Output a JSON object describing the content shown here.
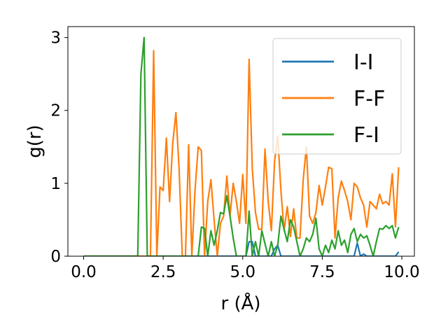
{
  "chart_data": {
    "type": "line",
    "xlabel": "r (Å)",
    "ylabel": "g(r)",
    "x": [
      0,
      0.1,
      0.2,
      0.3,
      0.4,
      0.5,
      0.6,
      0.7,
      0.8,
      0.9,
      1.0,
      1.1,
      1.2,
      1.3,
      1.4,
      1.5,
      1.6,
      1.7,
      1.8,
      1.9,
      2.0,
      2.1,
      2.2,
      2.3,
      2.4,
      2.5,
      2.6,
      2.7,
      2.8,
      2.9,
      3.0,
      3.1,
      3.2,
      3.3,
      3.4,
      3.5,
      3.6,
      3.7,
      3.8,
      3.9,
      4.0,
      4.1,
      4.2,
      4.3,
      4.4,
      4.5,
      4.6,
      4.7,
      4.8,
      4.9,
      5.0,
      5.1,
      5.2,
      5.3,
      5.4,
      5.5,
      5.6,
      5.7,
      5.8,
      5.9,
      6.0,
      6.1,
      6.2,
      6.3,
      6.4,
      6.5,
      6.6,
      6.7,
      6.8,
      6.9,
      7.0,
      7.1,
      7.2,
      7.3,
      7.4,
      7.5,
      7.6,
      7.7,
      7.8,
      7.9,
      8.0,
      8.1,
      8.2,
      8.3,
      8.4,
      8.5,
      8.6,
      8.7,
      8.8,
      8.9,
      9.0,
      9.1,
      9.2,
      9.3,
      9.4,
      9.5,
      9.6,
      9.7,
      9.8,
      9.9
    ],
    "series": [
      {
        "name": "I-I",
        "color": "#1f77b4",
        "values": [
          0,
          0,
          0,
          0,
          0,
          0,
          0,
          0,
          0,
          0,
          0,
          0,
          0,
          0,
          0,
          0,
          0,
          0,
          0,
          0,
          0,
          0,
          0,
          0,
          0,
          0,
          0,
          0,
          0,
          0,
          0,
          0,
          0,
          0,
          0,
          0,
          0,
          0,
          0,
          0,
          0,
          0,
          0,
          0,
          0,
          0,
          0,
          0,
          0,
          0,
          0,
          0,
          0.2,
          0.2,
          0,
          0,
          0,
          0,
          0,
          0,
          0.1,
          0.15,
          0,
          0,
          0,
          0,
          0,
          0,
          0,
          0,
          0,
          0,
          0,
          0,
          0,
          0,
          0,
          0,
          0,
          0,
          0,
          0,
          0,
          0,
          0,
          0,
          0.18,
          0,
          0.03,
          0,
          0,
          0,
          0,
          0,
          0,
          0,
          0,
          0,
          0,
          0.06
        ]
      },
      {
        "name": "F-F",
        "color": "#ff7f0e",
        "values": [
          0,
          0,
          0,
          0,
          0,
          0,
          0,
          0,
          0,
          0,
          0,
          0,
          0,
          0,
          0,
          0,
          0,
          0,
          0,
          0,
          0,
          0,
          2.82,
          0,
          0.95,
          0.9,
          1.62,
          0.75,
          1.55,
          1.97,
          1.2,
          0,
          0,
          1.53,
          0,
          0.9,
          1.5,
          1.45,
          0,
          0.75,
          1.05,
          0.5,
          0,
          0.45,
          0.55,
          1.1,
          0.55,
          1.0,
          0.75,
          0.45,
          1.12,
          0.45,
          2.7,
          1.2,
          0.6,
          0.37,
          0.37,
          1.47,
          0.75,
          0.35,
          1.3,
          1.65,
          0.9,
          0.35,
          0.68,
          0.27,
          0.65,
          0.25,
          0.25,
          1.05,
          1.5,
          0.55,
          0.45,
          0.6,
          0.97,
          0.7,
          0.95,
          1.22,
          1.2,
          0.25,
          0.8,
          1.03,
          0.9,
          0.75,
          0.5,
          1.0,
          0.95,
          0.8,
          0.7,
          0.4,
          0.75,
          0.7,
          0.65,
          0.85,
          0.72,
          0.75,
          0.7,
          1.13,
          0.4,
          1.22
        ]
      },
      {
        "name": "F-I",
        "color": "#2ca02c",
        "values": [
          0,
          0,
          0,
          0,
          0,
          0,
          0,
          0,
          0,
          0,
          0,
          0,
          0,
          0,
          0,
          0,
          0,
          0,
          2.5,
          3.0,
          0,
          0,
          0,
          0,
          0,
          0,
          0,
          0,
          0,
          0,
          0,
          0,
          0,
          0,
          0,
          0,
          0,
          0.4,
          0.38,
          0,
          0.35,
          0.15,
          0.35,
          0.6,
          0.58,
          0.83,
          0.55,
          0.25,
          0,
          0,
          0,
          0,
          0.62,
          0,
          0.2,
          0,
          0.35,
          0.17,
          0,
          0.2,
          0,
          0.15,
          0.55,
          0.37,
          0.2,
          0.5,
          0.4,
          0.2,
          0,
          0.1,
          0.25,
          0.2,
          0.3,
          0.52,
          0.1,
          0,
          0.15,
          0.05,
          0.22,
          0.1,
          0.35,
          0.15,
          0.22,
          0.05,
          0.3,
          0.38,
          0.2,
          0.3,
          0.25,
          0.28,
          0.15,
          0,
          0.2,
          0.38,
          0.37,
          0.42,
          0.38,
          0.42,
          0.25,
          0.4
        ]
      }
    ],
    "xlim": [
      -0.495,
      10.395
    ],
    "ylim": [
      0,
      3.15
    ],
    "xticks": [
      {
        "value": 0,
        "label": "0.0"
      },
      2.5,
      {
        "value": 5,
        "label": "5.0"
      },
      7.5,
      {
        "value": 10,
        "label": "10.0"
      }
    ],
    "yticks": [
      0,
      1,
      2,
      3
    ],
    "legend": "upper right"
  }
}
